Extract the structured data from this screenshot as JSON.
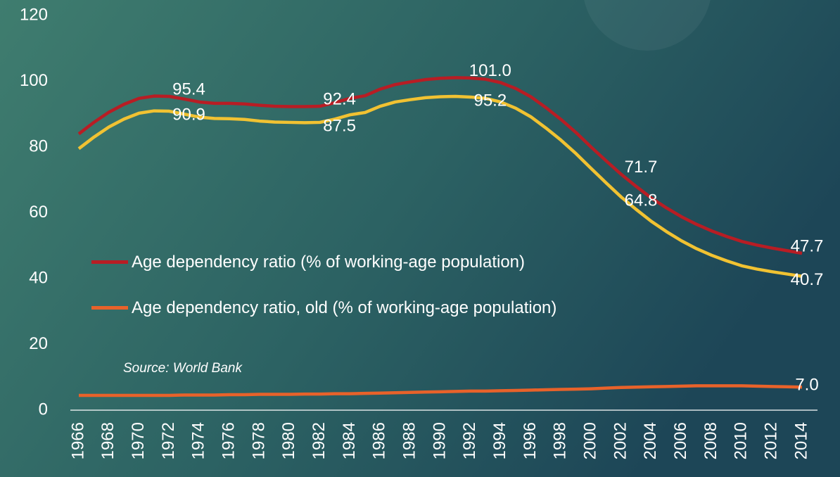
{
  "chart_data": {
    "type": "line",
    "source": "Source: World Bank",
    "categories": [
      "1966",
      null,
      "1968",
      null,
      "1970",
      null,
      "1972",
      null,
      "1974",
      null,
      "1976",
      null,
      "1978",
      null,
      "1980",
      null,
      "1982",
      null,
      "1984",
      null,
      "1986",
      null,
      "1988",
      null,
      "1990",
      null,
      "1992",
      null,
      "1994",
      null,
      "1996",
      null,
      "1998",
      null,
      "2000",
      null,
      "2002",
      null,
      "2004",
      null,
      "2006",
      null,
      "2008",
      null,
      "2010",
      null,
      "2012",
      null,
      "2014"
    ],
    "series": [
      {
        "name": "Age dependency ratio (% of working-age population)",
        "color": "#b81d24",
        "values": [
          84.0,
          87.5,
          90.6,
          93.0,
          94.8,
          95.5,
          95.4,
          94.6,
          93.7,
          93.3,
          93.3,
          93.1,
          92.7,
          92.4,
          92.3,
          92.3,
          92.4,
          93.5,
          94.8,
          95.6,
          97.6,
          99.0,
          99.8,
          100.5,
          100.9,
          101.1,
          101.0,
          100.6,
          99.6,
          97.8,
          95.3,
          92.0,
          88.4,
          84.4,
          80.0,
          75.8,
          71.7,
          68.0,
          64.5,
          61.5,
          58.8,
          56.5,
          54.5,
          52.8,
          51.3,
          50.2,
          49.3,
          48.5,
          47.7
        ],
        "value_labels": [
          null,
          null,
          null,
          null,
          null,
          null,
          "95.4",
          null,
          null,
          null,
          null,
          null,
          null,
          null,
          null,
          null,
          "92.4",
          null,
          null,
          null,
          null,
          null,
          null,
          null,
          null,
          null,
          "101.0",
          null,
          null,
          null,
          null,
          null,
          null,
          null,
          null,
          null,
          "71.7",
          null,
          null,
          null,
          null,
          null,
          null,
          null,
          null,
          null,
          null,
          null,
          "47.7"
        ]
      },
      {
        "color": "#f1c232",
        "values": [
          79.5,
          83.0,
          86.1,
          88.5,
          90.3,
          91.0,
          90.9,
          90.0,
          89.1,
          88.7,
          88.6,
          88.4,
          87.9,
          87.6,
          87.5,
          87.4,
          87.5,
          88.5,
          89.8,
          90.5,
          92.4,
          93.7,
          94.4,
          95.0,
          95.3,
          95.4,
          95.2,
          94.8,
          93.7,
          91.8,
          89.2,
          85.8,
          82.1,
          78.0,
          73.5,
          69.1,
          64.8,
          61.0,
          57.4,
          54.3,
          51.5,
          49.1,
          47.1,
          45.4,
          43.9,
          42.9,
          42.1,
          41.4,
          40.7
        ],
        "value_labels": [
          null,
          null,
          null,
          null,
          null,
          null,
          "90.9",
          null,
          null,
          null,
          null,
          null,
          null,
          null,
          null,
          null,
          "87.5",
          null,
          null,
          null,
          null,
          null,
          null,
          null,
          null,
          null,
          "95.2",
          null,
          null,
          null,
          null,
          null,
          null,
          null,
          null,
          null,
          "64.8",
          null,
          null,
          null,
          null,
          null,
          null,
          null,
          null,
          null,
          null,
          null,
          "40.7"
        ]
      },
      {
        "name": "Age dependency ratio, old (% of working-age population)",
        "color": "#e8622a",
        "values": [
          4.5,
          4.5,
          4.5,
          4.5,
          4.5,
          4.5,
          4.5,
          4.6,
          4.6,
          4.6,
          4.7,
          4.7,
          4.8,
          4.8,
          4.8,
          4.9,
          4.9,
          5.0,
          5.0,
          5.1,
          5.2,
          5.3,
          5.4,
          5.5,
          5.6,
          5.7,
          5.8,
          5.8,
          5.9,
          6.0,
          6.1,
          6.2,
          6.3,
          6.4,
          6.5,
          6.7,
          6.9,
          7.0,
          7.1,
          7.2,
          7.3,
          7.4,
          7.4,
          7.4,
          7.4,
          7.3,
          7.2,
          7.1,
          7.0
        ],
        "value_labels": [
          null,
          null,
          null,
          null,
          null,
          null,
          null,
          null,
          null,
          null,
          null,
          null,
          null,
          null,
          null,
          null,
          null,
          null,
          null,
          null,
          null,
          null,
          null,
          null,
          null,
          null,
          null,
          null,
          null,
          null,
          null,
          null,
          null,
          null,
          null,
          null,
          null,
          null,
          null,
          null,
          null,
          null,
          null,
          null,
          null,
          null,
          null,
          null,
          "7.0"
        ]
      }
    ],
    "ylim": [
      0,
      120
    ],
    "yticks": [
      0,
      20,
      40,
      60,
      80,
      100,
      120
    ],
    "grid": false
  }
}
